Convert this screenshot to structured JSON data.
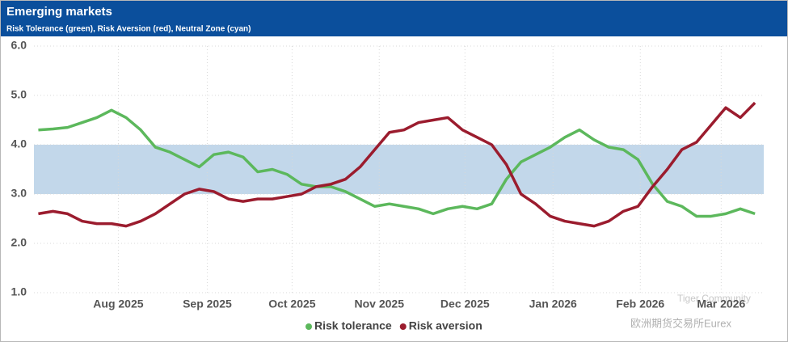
{
  "chart_data": {
    "type": "line",
    "title": "Emerging markets",
    "subtitle": "Risk Tolerance (green), Risk Aversion (red), Neutral Zone (cyan)",
    "x": [
      0,
      1,
      2,
      3,
      4,
      5,
      6,
      7,
      8,
      9,
      10,
      11,
      12,
      13,
      14,
      15,
      16,
      17,
      18,
      19,
      20,
      21,
      22,
      23,
      24,
      25,
      26,
      27,
      28,
      29,
      30,
      31,
      32,
      33,
      34,
      35,
      36,
      37,
      38,
      39,
      40,
      41,
      42,
      43,
      44,
      45,
      46,
      47,
      48,
      49
    ],
    "xlim": [
      -0.3,
      49.6
    ],
    "xticks": [
      {
        "value": 5.47,
        "label": "Aug 2025"
      },
      {
        "value": 11.55,
        "label": "Sep 2025"
      },
      {
        "value": 17.35,
        "label": "Oct 2025"
      },
      {
        "value": 23.31,
        "label": "Nov 2025"
      },
      {
        "value": 29.17,
        "label": "Dec 2025"
      },
      {
        "value": 35.19,
        "label": "Jan 2026"
      },
      {
        "value": 41.16,
        "label": "Feb 2026"
      },
      {
        "value": 46.69,
        "label": "Mar 2026"
      }
    ],
    "ylim": [
      1,
      6
    ],
    "yticks": [
      {
        "value": 1,
        "label": "1.0"
      },
      {
        "value": 2,
        "label": "2.0"
      },
      {
        "value": 3,
        "label": "3.0"
      },
      {
        "value": 4,
        "label": "4.0"
      },
      {
        "value": 5,
        "label": "5.0"
      },
      {
        "value": 6,
        "label": "6.0"
      }
    ],
    "grid": true,
    "band": {
      "from": 3,
      "to": 4,
      "color": "#c2d7ea"
    },
    "legend": "bottom",
    "series": [
      {
        "name": "Risk tolerance",
        "color": "#5cb85c",
        "values": [
          4.3,
          4.32,
          4.35,
          4.45,
          4.55,
          4.7,
          4.55,
          4.3,
          3.95,
          3.85,
          3.7,
          3.55,
          3.8,
          3.85,
          3.75,
          3.45,
          3.5,
          3.4,
          3.2,
          3.15,
          3.15,
          3.05,
          2.9,
          2.75,
          2.8,
          2.75,
          2.7,
          2.6,
          2.7,
          2.75,
          2.7,
          2.8,
          3.3,
          3.65,
          3.8,
          3.95,
          4.15,
          4.3,
          4.1,
          3.95,
          3.9,
          3.7,
          3.2,
          2.85,
          2.75,
          2.55,
          2.55,
          2.6,
          2.7,
          2.6
        ]
      },
      {
        "name": "Risk aversion",
        "color": "#9b1c2e",
        "values": [
          2.6,
          2.65,
          2.6,
          2.45,
          2.4,
          2.4,
          2.35,
          2.45,
          2.6,
          2.8,
          3.0,
          3.1,
          3.05,
          2.9,
          2.85,
          2.9,
          2.9,
          2.95,
          3.0,
          3.15,
          3.2,
          3.3,
          3.55,
          3.9,
          4.25,
          4.3,
          4.45,
          4.5,
          4.55,
          4.3,
          4.15,
          4.0,
          3.6,
          3.0,
          2.8,
          2.55,
          2.45,
          2.4,
          2.35,
          2.45,
          2.65,
          2.75,
          3.15,
          3.5,
          3.9,
          4.05,
          4.4,
          4.75,
          4.55,
          4.85
        ]
      }
    ],
    "watermark": [
      "Tiger Community",
      "欧洲期货交易所Eurex"
    ]
  }
}
